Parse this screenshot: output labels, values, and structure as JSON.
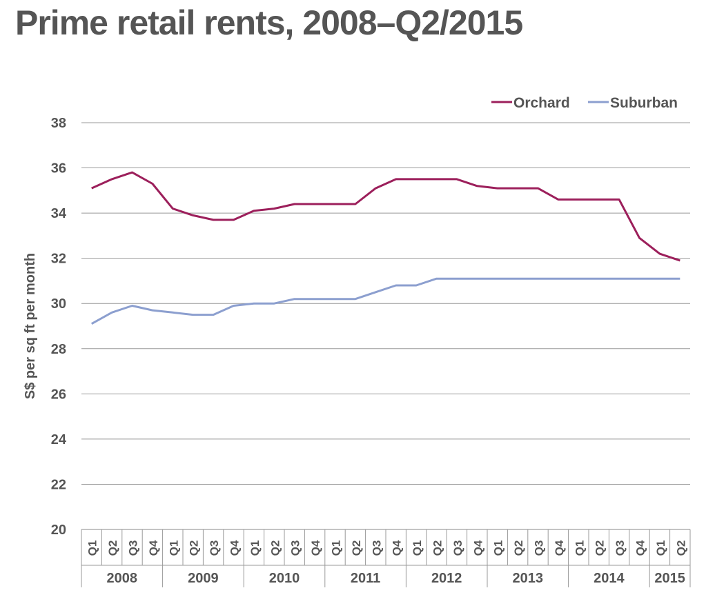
{
  "chart_data": {
    "type": "line",
    "title": "Prime retail rents, 2008–Q2/2015",
    "xlabel": "",
    "ylabel": "S$ per sq ft per month",
    "ylim": [
      20,
      38
    ],
    "yticks": [
      20,
      22,
      24,
      26,
      28,
      30,
      32,
      34,
      36,
      38
    ],
    "grid": true,
    "legend_position": "top-right",
    "years": [
      {
        "label": "2008",
        "quarters": [
          "Q1",
          "Q2",
          "Q3",
          "Q4"
        ]
      },
      {
        "label": "2009",
        "quarters": [
          "Q1",
          "Q2",
          "Q3",
          "Q4"
        ]
      },
      {
        "label": "2010",
        "quarters": [
          "Q1",
          "Q2",
          "Q3",
          "Q4"
        ]
      },
      {
        "label": "2011",
        "quarters": [
          "Q1",
          "Q2",
          "Q3",
          "Q4"
        ]
      },
      {
        "label": "2012",
        "quarters": [
          "Q1",
          "Q2",
          "Q3",
          "Q4"
        ]
      },
      {
        "label": "2013",
        "quarters": [
          "Q1",
          "Q2",
          "Q3",
          "Q4"
        ]
      },
      {
        "label": "2014",
        "quarters": [
          "Q1",
          "Q2",
          "Q3",
          "Q4"
        ]
      },
      {
        "label": "2015",
        "quarters": [
          "Q1",
          "Q2"
        ]
      }
    ],
    "series": [
      {
        "name": "Orchard",
        "color": "#9c1f5b",
        "values": [
          35.1,
          35.5,
          35.8,
          35.3,
          34.2,
          33.9,
          33.7,
          33.7,
          34.1,
          34.2,
          34.4,
          34.4,
          34.4,
          34.4,
          35.1,
          35.5,
          35.5,
          35.5,
          35.5,
          35.2,
          35.1,
          35.1,
          35.1,
          34.6,
          34.6,
          34.6,
          34.6,
          32.9,
          32.2,
          31.9
        ]
      },
      {
        "name": "Suburban",
        "color": "#8c9fcf",
        "values": [
          29.1,
          29.6,
          29.9,
          29.7,
          29.6,
          29.5,
          29.5,
          29.9,
          30.0,
          30.0,
          30.2,
          30.2,
          30.2,
          30.2,
          30.5,
          30.8,
          30.8,
          31.1,
          31.1,
          31.1,
          31.1,
          31.1,
          31.1,
          31.1,
          31.1,
          31.1,
          31.1,
          31.1,
          31.1,
          31.1
        ]
      }
    ]
  }
}
